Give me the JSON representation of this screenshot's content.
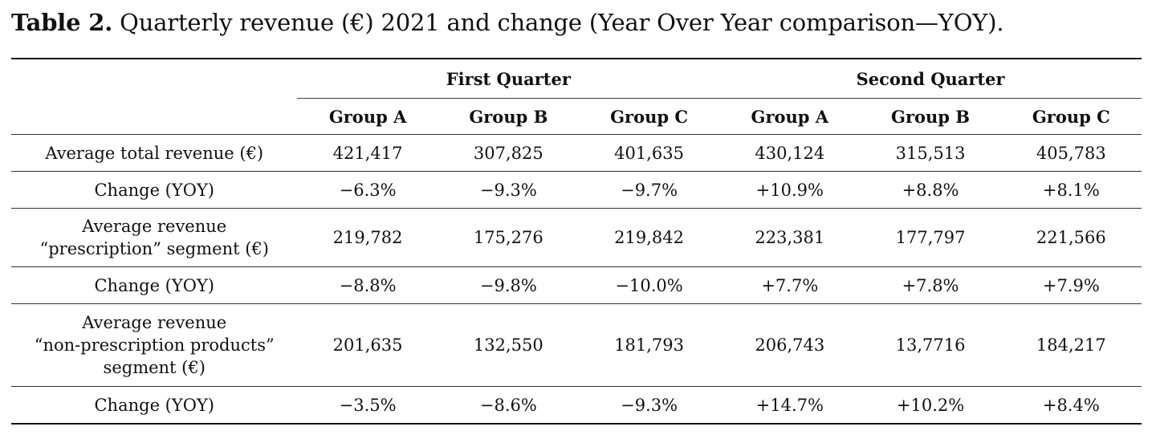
{
  "caption": {
    "label": "Table 2.",
    "text": " Quarterly revenue (€) 2021 and change (Year Over Year comparison—YOY)."
  },
  "table": {
    "quarters": [
      "First Quarter",
      "Second Quarter"
    ],
    "groups": [
      "Group A",
      "Group B",
      "Group C",
      "Group A",
      "Group B",
      "Group C"
    ],
    "rows": [
      {
        "label": "Average total revenue (€)",
        "values": [
          "421,417",
          "307,825",
          "401,635",
          "430,124",
          "315,513",
          "405,783"
        ]
      },
      {
        "label": "Change (YOY)",
        "values": [
          "−6.3%",
          "−9.3%",
          "−9.7%",
          "+10.9%",
          "+8.8%",
          "+8.1%"
        ]
      },
      {
        "label_lines": [
          "Average revenue",
          "“prescription” segment (€)"
        ],
        "values": [
          "219,782",
          "175,276",
          "219,842",
          "223,381",
          "177,797",
          "221,566"
        ]
      },
      {
        "label": "Change (YOY)",
        "values": [
          "−8.8%",
          "−9.8%",
          "−10.0%",
          "+7.7%",
          "+7.8%",
          "+7.9%"
        ]
      },
      {
        "label_lines": [
          "Average revenue",
          "“non-prescription products”",
          "segment (€)"
        ],
        "values": [
          "201,635",
          "132,550",
          "181,793",
          "206,743",
          "13,7716",
          "184,217"
        ]
      },
      {
        "label": "Change (YOY)",
        "values": [
          "−3.5%",
          "−8.6%",
          "−9.3%",
          "+14.7%",
          "+10.2%",
          "+8.4%"
        ]
      }
    ]
  }
}
